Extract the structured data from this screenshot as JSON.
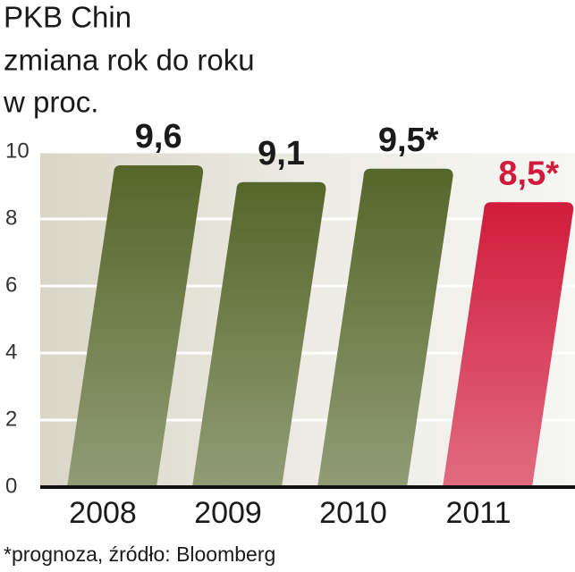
{
  "chart_data": {
    "type": "bar",
    "title": "PKB Chin",
    "subtitle": [
      "zmiana rok do roku",
      "w proc."
    ],
    "categories": [
      "2008",
      "2009",
      "2010",
      "2011"
    ],
    "values": [
      9.6,
      9.1,
      9.5,
      8.5
    ],
    "value_labels": [
      "9,6",
      "9,1",
      "9,5*",
      "8,5*"
    ],
    "colors": [
      "#56662a",
      "#56662a",
      "#56662a",
      "#d11b3c"
    ],
    "ylim": [
      0,
      10
    ],
    "yticks": [
      0,
      2,
      4,
      6,
      8,
      10
    ],
    "grid": true,
    "footnote": "*prognoza, źródło: Bloomberg"
  }
}
